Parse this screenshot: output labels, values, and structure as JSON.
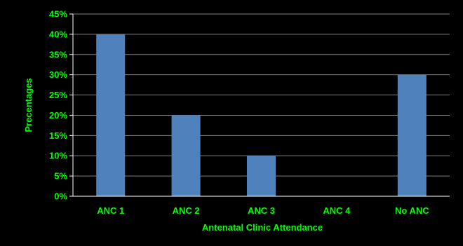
{
  "chart_data": {
    "type": "bar",
    "categories": [
      "ANC 1",
      "ANC 2",
      "ANC 3",
      "ANC 4",
      "No ANC"
    ],
    "values": [
      40,
      20,
      10,
      0,
      30
    ],
    "xlabel": "Antenatal Clinic Attendance",
    "ylabel": "Precentages",
    "ylim": [
      0,
      45
    ],
    "ytick_step": 5,
    "ytick_suffix": "%",
    "grid": true,
    "legend": "none",
    "colors": {
      "background": "#000000",
      "bar": "#4F81BD",
      "gridline": "#808080",
      "text": "#00FF00",
      "axis": "#ffffff"
    }
  }
}
